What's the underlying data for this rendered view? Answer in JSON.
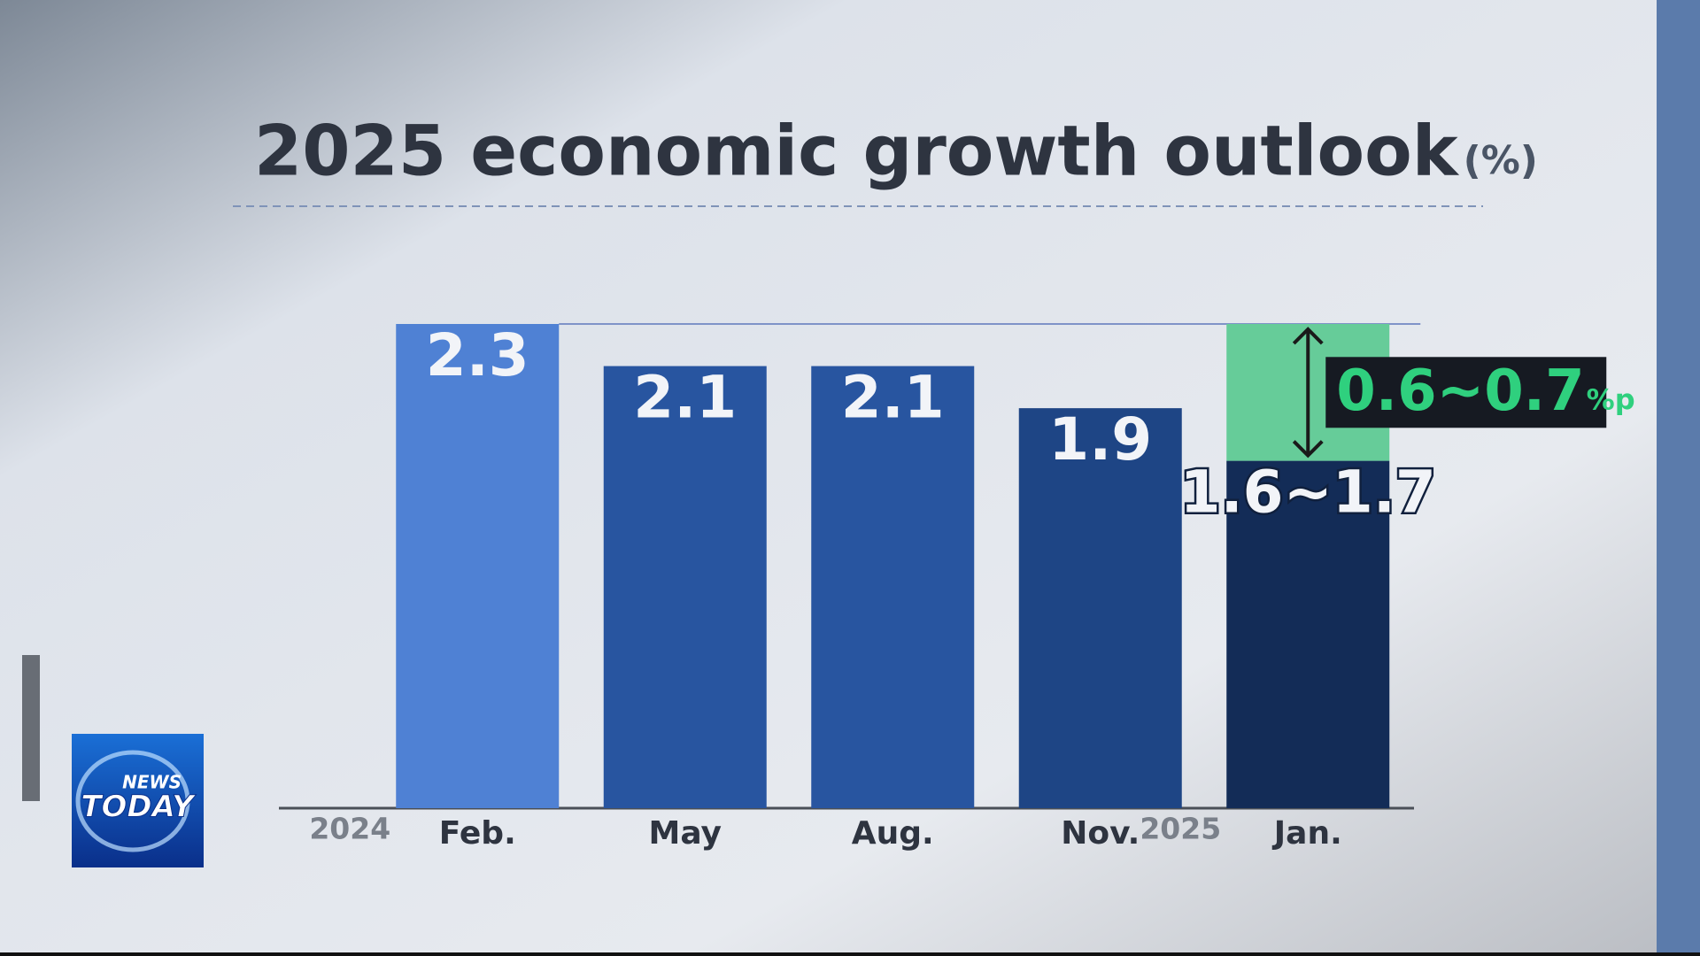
{
  "chart_data": {
    "type": "bar",
    "title": "2025 economic growth outlook",
    "title_unit": "(%)",
    "categories": [
      "Feb.",
      "May",
      "Aug.",
      "Nov.",
      "Jan."
    ],
    "year_labels": [
      "2024",
      null,
      null,
      null,
      "2025"
    ],
    "series": [
      {
        "values": [
          2.3,
          2.1,
          2.1,
          1.9,
          1.65
        ],
        "value_labels": [
          "2.3",
          "2.1",
          "2.1",
          "1.9",
          "1.6~1.7"
        ],
        "colors": [
          "#4f81d4",
          "#2855a0",
          "#2855a0",
          "#1e4585",
          "#132c57"
        ]
      },
      {
        "values": [
          null,
          null,
          null,
          null,
          0.65
        ],
        "value_labels": [
          null,
          null,
          null,
          null,
          "0.6~0.7"
        ],
        "unit_label": "%p",
        "color": "#66cc99",
        "label_color": "#2fd07e"
      }
    ],
    "ylim": [
      0,
      2.3
    ]
  },
  "logo": {
    "line1": "NEWS",
    "line2": "TODAY"
  }
}
